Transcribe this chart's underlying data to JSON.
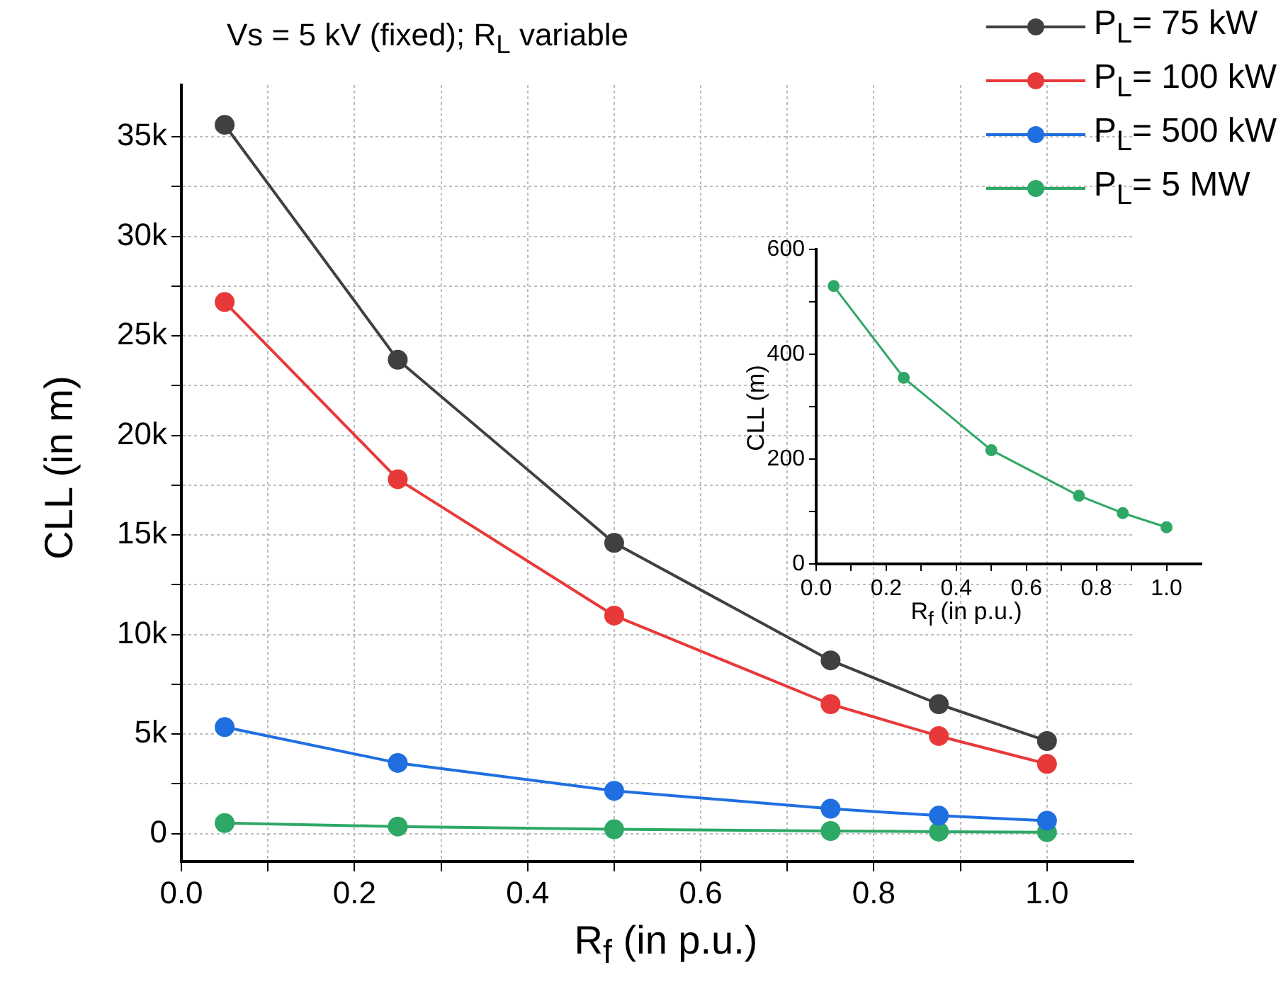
{
  "chart_data": [
    {
      "type": "line",
      "title": "Vs = 5 kV (fixed); R$_{L}$ variable",
      "xlabel": "R$_{f}$ (in p.u.)",
      "ylabel": "CLL (in m)",
      "x": [
        0.05,
        0.25,
        0.5,
        0.75,
        0.875,
        1.0
      ],
      "series": [
        {
          "name": "P$_{L}$= 75 kW",
          "color": "#404040",
          "values": [
            35600,
            23800,
            14600,
            8700,
            6500,
            4650
          ]
        },
        {
          "name": "P$_{L}$= 100 kW",
          "color": "#e8393a",
          "values": [
            26700,
            17800,
            10950,
            6500,
            4900,
            3500
          ]
        },
        {
          "name": "P$_{L}$= 500 kW",
          "color": "#1f6fe0",
          "values": [
            5350,
            3550,
            2150,
            1250,
            900,
            650
          ]
        },
        {
          "name": "P$_{L}$= 5 MW",
          "color": "#2ea866",
          "values": [
            530,
            355,
            217,
            130,
            97,
            70
          ]
        }
      ],
      "xlim": [
        0,
        1.1
      ],
      "xticks": [
        {
          "value": 0,
          "label": "0.0"
        },
        {
          "value": 0.1,
          "label": null
        },
        {
          "value": 0.2,
          "label": "0.2"
        },
        {
          "value": 0.3,
          "label": null
        },
        {
          "value": 0.4,
          "label": "0.4"
        },
        {
          "value": 0.5,
          "label": null
        },
        {
          "value": 0.6,
          "label": "0.6"
        },
        {
          "value": 0.7,
          "label": null
        },
        {
          "value": 0.8,
          "label": "0.8"
        },
        {
          "value": 0.9,
          "label": null
        },
        {
          "value": 1.0,
          "label": "1.0"
        }
      ],
      "ylim": [
        -1400,
        37600
      ],
      "yticks": [
        0,
        {
          "value": 2500,
          "label": null
        },
        {
          "value": 5000,
          "label": "5k"
        },
        {
          "value": 7500,
          "label": null
        },
        {
          "value": 10000,
          "label": "10k"
        },
        {
          "value": 12500,
          "label": null
        },
        {
          "value": 15000,
          "label": "15k"
        },
        {
          "value": 17500,
          "label": null
        },
        {
          "value": 20000,
          "label": "20k"
        },
        {
          "value": 22500,
          "label": null
        },
        {
          "value": 25000,
          "label": "25k"
        },
        {
          "value": 27500,
          "label": null
        },
        {
          "value": 30000,
          "label": "30k"
        },
        {
          "value": 32500,
          "label": null
        },
        {
          "value": 35000,
          "label": "35k"
        }
      ],
      "grid": true,
      "legend": "top right",
      "marker": "circle"
    },
    {
      "type": "line",
      "xlabel": "R$_{f}$ (in p.u.)",
      "ylabel": "CLL (m)",
      "x": [
        0.05,
        0.25,
        0.5,
        0.75,
        0.875,
        1.0
      ],
      "series": [
        {
          "color": "#2ea866",
          "values": [
            530,
            355,
            217,
            130,
            97,
            70
          ]
        }
      ],
      "xlim": [
        0,
        1.1
      ],
      "xticks": [
        {
          "value": 0,
          "label": "0.0"
        },
        {
          "value": 0.1,
          "label": null
        },
        {
          "value": 0.2,
          "label": "0.2"
        },
        {
          "value": 0.3,
          "label": null
        },
        {
          "value": 0.4,
          "label": "0.4"
        },
        {
          "value": 0.5,
          "label": null
        },
        {
          "value": 0.6,
          "label": "0.6"
        },
        {
          "value": 0.7,
          "label": null
        },
        {
          "value": 0.8,
          "label": "0.8"
        },
        {
          "value": 0.9,
          "label": null
        },
        {
          "value": 1.0,
          "label": "1.0"
        }
      ],
      "ylim": [
        0,
        600
      ],
      "yticks": [
        0,
        {
          "value": 100,
          "label": null
        },
        200,
        {
          "value": 300,
          "label": null
        },
        400,
        {
          "value": 500,
          "label": null
        },
        600
      ],
      "marker": "circle"
    }
  ]
}
